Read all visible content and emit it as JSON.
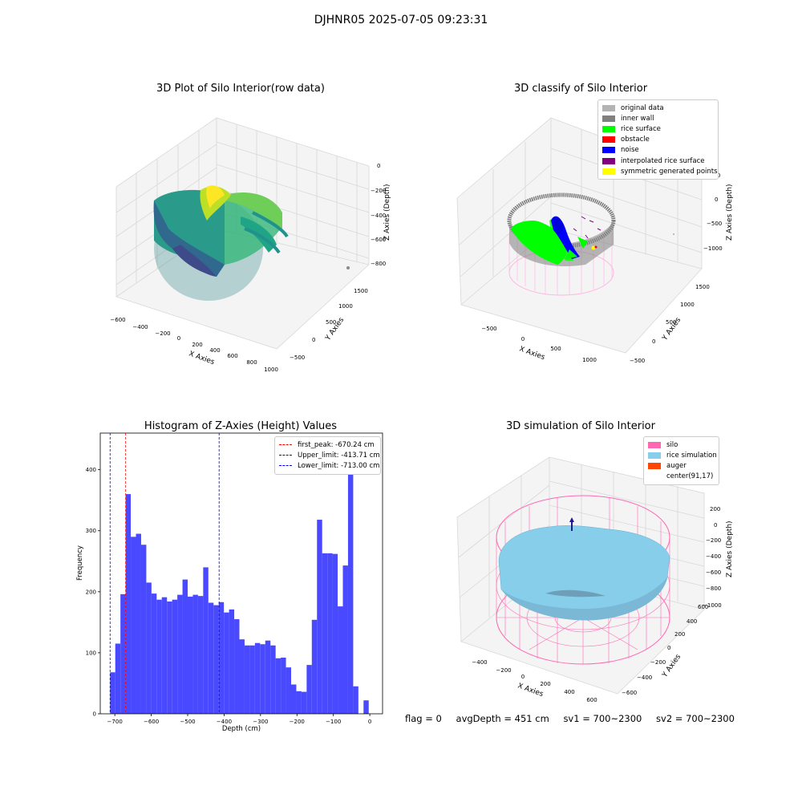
{
  "suptitle": "DJHNR05 2025-07-05 09:23:31",
  "chart_data": [
    {
      "type": "scatter",
      "title": "3D Plot of Silo Interior(row data)",
      "xlabel": "X Axies",
      "ylabel": "Y Axies",
      "zlabel": "Z Axies (Depth)",
      "xticks": [
        "−600",
        "−400",
        "−200",
        "0",
        "200",
        "400",
        "600",
        "800",
        "1000"
      ],
      "yticks": [
        "−500",
        "0",
        "500",
        "1000",
        "1500"
      ],
      "zticks": [
        "0",
        "−200",
        "−400",
        "−600",
        "−800"
      ],
      "zlim": [
        -900,
        0
      ],
      "colormap": "viridis"
    },
    {
      "type": "scatter",
      "title": "3D classify of Silo Interior",
      "xlabel": "X Axies",
      "ylabel": "Y Axies",
      "zlabel": "Z Axies (Depth)",
      "xticks": [
        "−500",
        "0",
        "500",
        "1000"
      ],
      "yticks": [
        "−500",
        "0",
        "500",
        "1000",
        "1500"
      ],
      "zticks": [
        "500",
        "0",
        "−500",
        "−1000"
      ],
      "legend": [
        {
          "label": "original data",
          "color": "#b3b3b3"
        },
        {
          "label": "inner wall",
          "color": "#808080"
        },
        {
          "label": "rice surface",
          "color": "#00ff00"
        },
        {
          "label": "obstacle",
          "color": "#ff0000"
        },
        {
          "label": "noise",
          "color": "#0000ff"
        },
        {
          "label": "interpolated rice surface",
          "color": "#800080"
        },
        {
          "label": "symmetric generated points",
          "color": "#ffff00"
        }
      ],
      "legend_position": "top-right"
    },
    {
      "type": "bar",
      "title": "Histogram of Z-Axies (Height) Values",
      "xlabel": "Depth (cm)",
      "ylabel": "Frequency",
      "xlim": [
        -740,
        35
      ],
      "ylim": [
        0,
        460
      ],
      "xticks": [
        "−700",
        "−600",
        "−500",
        "−400",
        "−300",
        "−200",
        "−100",
        "0"
      ],
      "yticks": [
        "0",
        "100",
        "200",
        "300",
        "400"
      ],
      "bin_width": 14.2,
      "bin_start": -713,
      "values": [
        68,
        115,
        196,
        360,
        290,
        295,
        277,
        215,
        197,
        187,
        191,
        184,
        187,
        195,
        220,
        192,
        195,
        193,
        240,
        182,
        178,
        183,
        166,
        171,
        155,
        122,
        112,
        112,
        116,
        114,
        120,
        112,
        91,
        92,
        76,
        48,
        37,
        36,
        80,
        154,
        318,
        263,
        263,
        262,
        176,
        243,
        435,
        45,
        0,
        22
      ],
      "bar_color": "#4949ff",
      "lines": [
        {
          "label": "first_peak: -670.24 cm",
          "x": -670.24,
          "color": "#ff0000"
        },
        {
          "label": "Upper_limit: -413.71 cm",
          "x": -413.71,
          "color": "#0000ff"
        },
        {
          "label": "Lower_limit: -713.00 cm",
          "x": -713.0,
          "color": "#0000ff"
        }
      ],
      "legend_position": "top-right"
    },
    {
      "type": "scatter",
      "title": "3D simulation of Silo Interior",
      "xlabel": "X Axies",
      "ylabel": "Y Axies",
      "zlabel": "Z Axies (Depth)",
      "xticks": [
        "−400",
        "−200",
        "0",
        "200",
        "400",
        "600"
      ],
      "yticks": [
        "−600",
        "−400",
        "−200",
        "0",
        "200",
        "400",
        "600"
      ],
      "zticks": [
        "200",
        "0",
        "−200",
        "−400",
        "−600",
        "−800",
        "−1000"
      ],
      "legend": [
        {
          "label": "silo",
          "color": "#ff69b4"
        },
        {
          "label": "rice simulation",
          "color": "#87ceeb"
        },
        {
          "label": "auger",
          "color": "#ff4500"
        },
        {
          "label": "center(91,17)",
          "color": "#ffffff"
        }
      ],
      "legend_position": "top-right"
    }
  ],
  "status": {
    "flag": "flag = 0",
    "avg": "avgDepth = 451 cm",
    "sv1": "sv1 = 700~2300",
    "sv2": "sv2 = 700~2300"
  }
}
